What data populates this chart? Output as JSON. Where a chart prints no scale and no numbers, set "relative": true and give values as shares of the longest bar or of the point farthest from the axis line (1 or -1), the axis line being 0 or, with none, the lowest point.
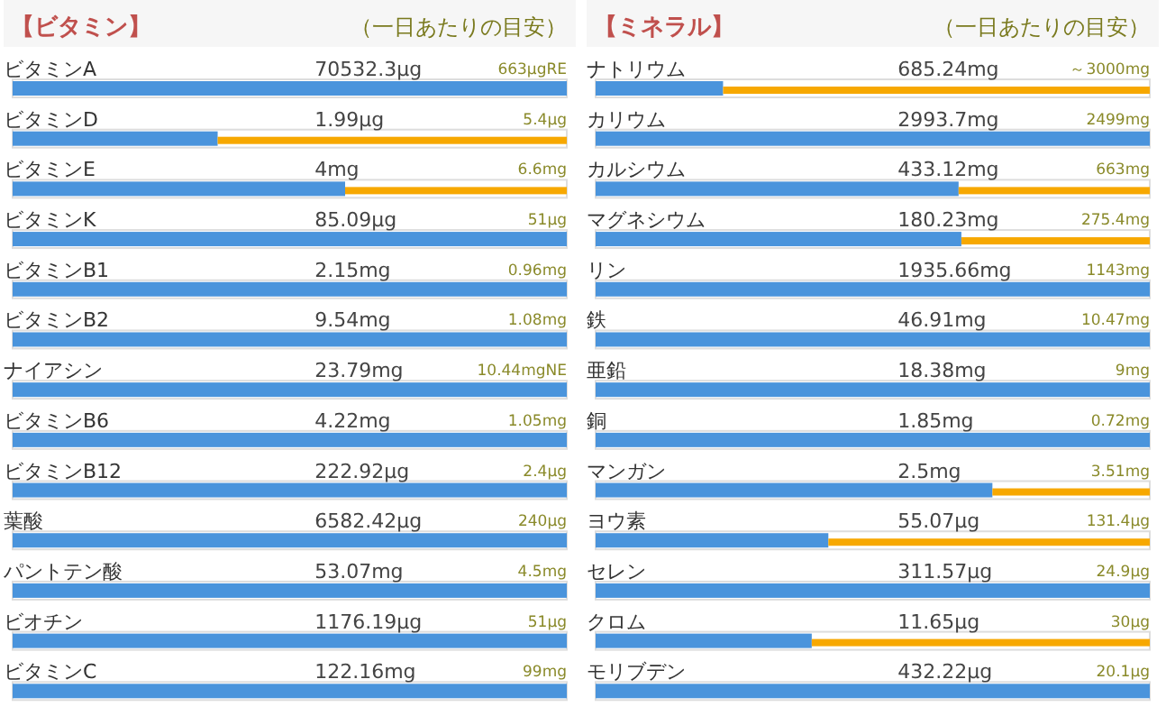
{
  "chart_data": [
    {
      "type": "bar",
      "orientation": "horizontal",
      "stacked": true,
      "relative": true,
      "title": "【ビタミン】",
      "subtitle": "（一日あたりの目安）",
      "categories": [
        "ビタミンA",
        "ビタミンD",
        "ビタミンE",
        "ビタミンK",
        "ビタミンB1",
        "ビタミンB2",
        "ナイアシン",
        "ビタミンB6",
        "ビタミンB12",
        "葉酸",
        "パントテン酸",
        "ビオチン",
        "ビタミンC"
      ],
      "series": [
        {
          "color": "#4a94dc",
          "values": [
            1,
            0.37,
            0.6,
            1,
            1,
            1,
            1,
            1,
            1,
            1,
            1,
            1,
            1
          ]
        },
        {
          "color": "#f7a800",
          "values": [
            0,
            0.63,
            0.4,
            0,
            0,
            0,
            0,
            0,
            0,
            0,
            0,
            0,
            0
          ]
        }
      ],
      "annotations": [
        {
          "text": "70532.3μg",
          "y": "ビタミンA"
        },
        {
          "text": "663μgRE",
          "y": "ビタミンA"
        },
        {
          "text": "1.99μg",
          "y": "ビタミンD"
        },
        {
          "text": "5.4μg",
          "y": "ビタミンD"
        },
        {
          "text": "4mg",
          "y": "ビタミンE"
        },
        {
          "text": "6.6mg",
          "y": "ビタミンE"
        },
        {
          "text": "85.09μg",
          "y": "ビタミンK"
        },
        {
          "text": "51μg",
          "y": "ビタミンK"
        },
        {
          "text": "2.15mg",
          "y": "ビタミンB1"
        },
        {
          "text": "0.96mg",
          "y": "ビタミンB1"
        },
        {
          "text": "9.54mg",
          "y": "ビタミンB2"
        },
        {
          "text": "1.08mg",
          "y": "ビタミンB2"
        },
        {
          "text": "23.79mg",
          "y": "ナイアシン"
        },
        {
          "text": "10.44mgNE",
          "y": "ナイアシン"
        },
        {
          "text": "4.22mg",
          "y": "ビタミンB6"
        },
        {
          "text": "1.05mg",
          "y": "ビタミンB6"
        },
        {
          "text": "222.92μg",
          "y": "ビタミンB12"
        },
        {
          "text": "2.4μg",
          "y": "ビタミンB12"
        },
        {
          "text": "6582.42μg",
          "y": "葉酸"
        },
        {
          "text": "240μg",
          "y": "葉酸"
        },
        {
          "text": "53.07mg",
          "y": "パントテン酸"
        },
        {
          "text": "4.5mg",
          "y": "パントテン酸"
        },
        {
          "text": "1176.19μg",
          "y": "ビオチン"
        },
        {
          "text": "51μg",
          "y": "ビオチン"
        },
        {
          "text": "122.16mg",
          "y": "ビタミンC"
        },
        {
          "text": "99mg",
          "y": "ビタミンC"
        }
      ]
    },
    {
      "type": "bar",
      "orientation": "horizontal",
      "stacked": true,
      "relative": true,
      "title": "【ミネラル】",
      "subtitle": "（一日あたりの目安）",
      "categories": [
        "ナトリウム",
        "カリウム",
        "カルシウム",
        "マグネシウム",
        "リン",
        "鉄",
        "亜鉛",
        "銅",
        "マンガン",
        "ヨウ素",
        "セレン",
        "クロム",
        "モリブデン"
      ],
      "series": [
        {
          "color": "#4a94dc",
          "values": [
            0.23,
            1,
            0.655,
            0.66,
            1,
            1,
            1,
            1,
            0.716,
            0.42,
            1,
            0.39,
            1
          ]
        },
        {
          "color": "#f7a800",
          "values": [
            0.77,
            0,
            0.345,
            0.34,
            0,
            0,
            0,
            0,
            0.284,
            0.58,
            0,
            0.61,
            0
          ]
        }
      ],
      "annotations": [
        {
          "text": "685.24mg",
          "y": "ナトリウム"
        },
        {
          "text": "～3000mg",
          "y": "ナトリウム"
        },
        {
          "text": "2993.7mg",
          "y": "カリウム"
        },
        {
          "text": "2499mg",
          "y": "カリウム"
        },
        {
          "text": "433.12mg",
          "y": "カルシウム"
        },
        {
          "text": "663mg",
          "y": "カルシウム"
        },
        {
          "text": "180.23mg",
          "y": "マグネシウム"
        },
        {
          "text": "275.4mg",
          "y": "マグネシウム"
        },
        {
          "text": "1935.66mg",
          "y": "リン"
        },
        {
          "text": "1143mg",
          "y": "リン"
        },
        {
          "text": "46.91mg",
          "y": "鉄"
        },
        {
          "text": "10.47mg",
          "y": "鉄"
        },
        {
          "text": "18.38mg",
          "y": "亜鉛"
        },
        {
          "text": "9mg",
          "y": "亜鉛"
        },
        {
          "text": "1.85mg",
          "y": "銅"
        },
        {
          "text": "0.72mg",
          "y": "銅"
        },
        {
          "text": "2.5mg",
          "y": "マンガン"
        },
        {
          "text": "3.51mg",
          "y": "マンガン"
        },
        {
          "text": "55.07μg",
          "y": "ヨウ素"
        },
        {
          "text": "131.4μg",
          "y": "ヨウ素"
        },
        {
          "text": "311.57μg",
          "y": "セレン"
        },
        {
          "text": "24.9μg",
          "y": "セレン"
        },
        {
          "text": "11.65μg",
          "y": "クロム"
        },
        {
          "text": "30μg",
          "y": "クロム"
        },
        {
          "text": "432.22μg",
          "y": "モリブデン"
        },
        {
          "text": "20.1μg",
          "y": "モリブデン"
        }
      ]
    }
  ]
}
